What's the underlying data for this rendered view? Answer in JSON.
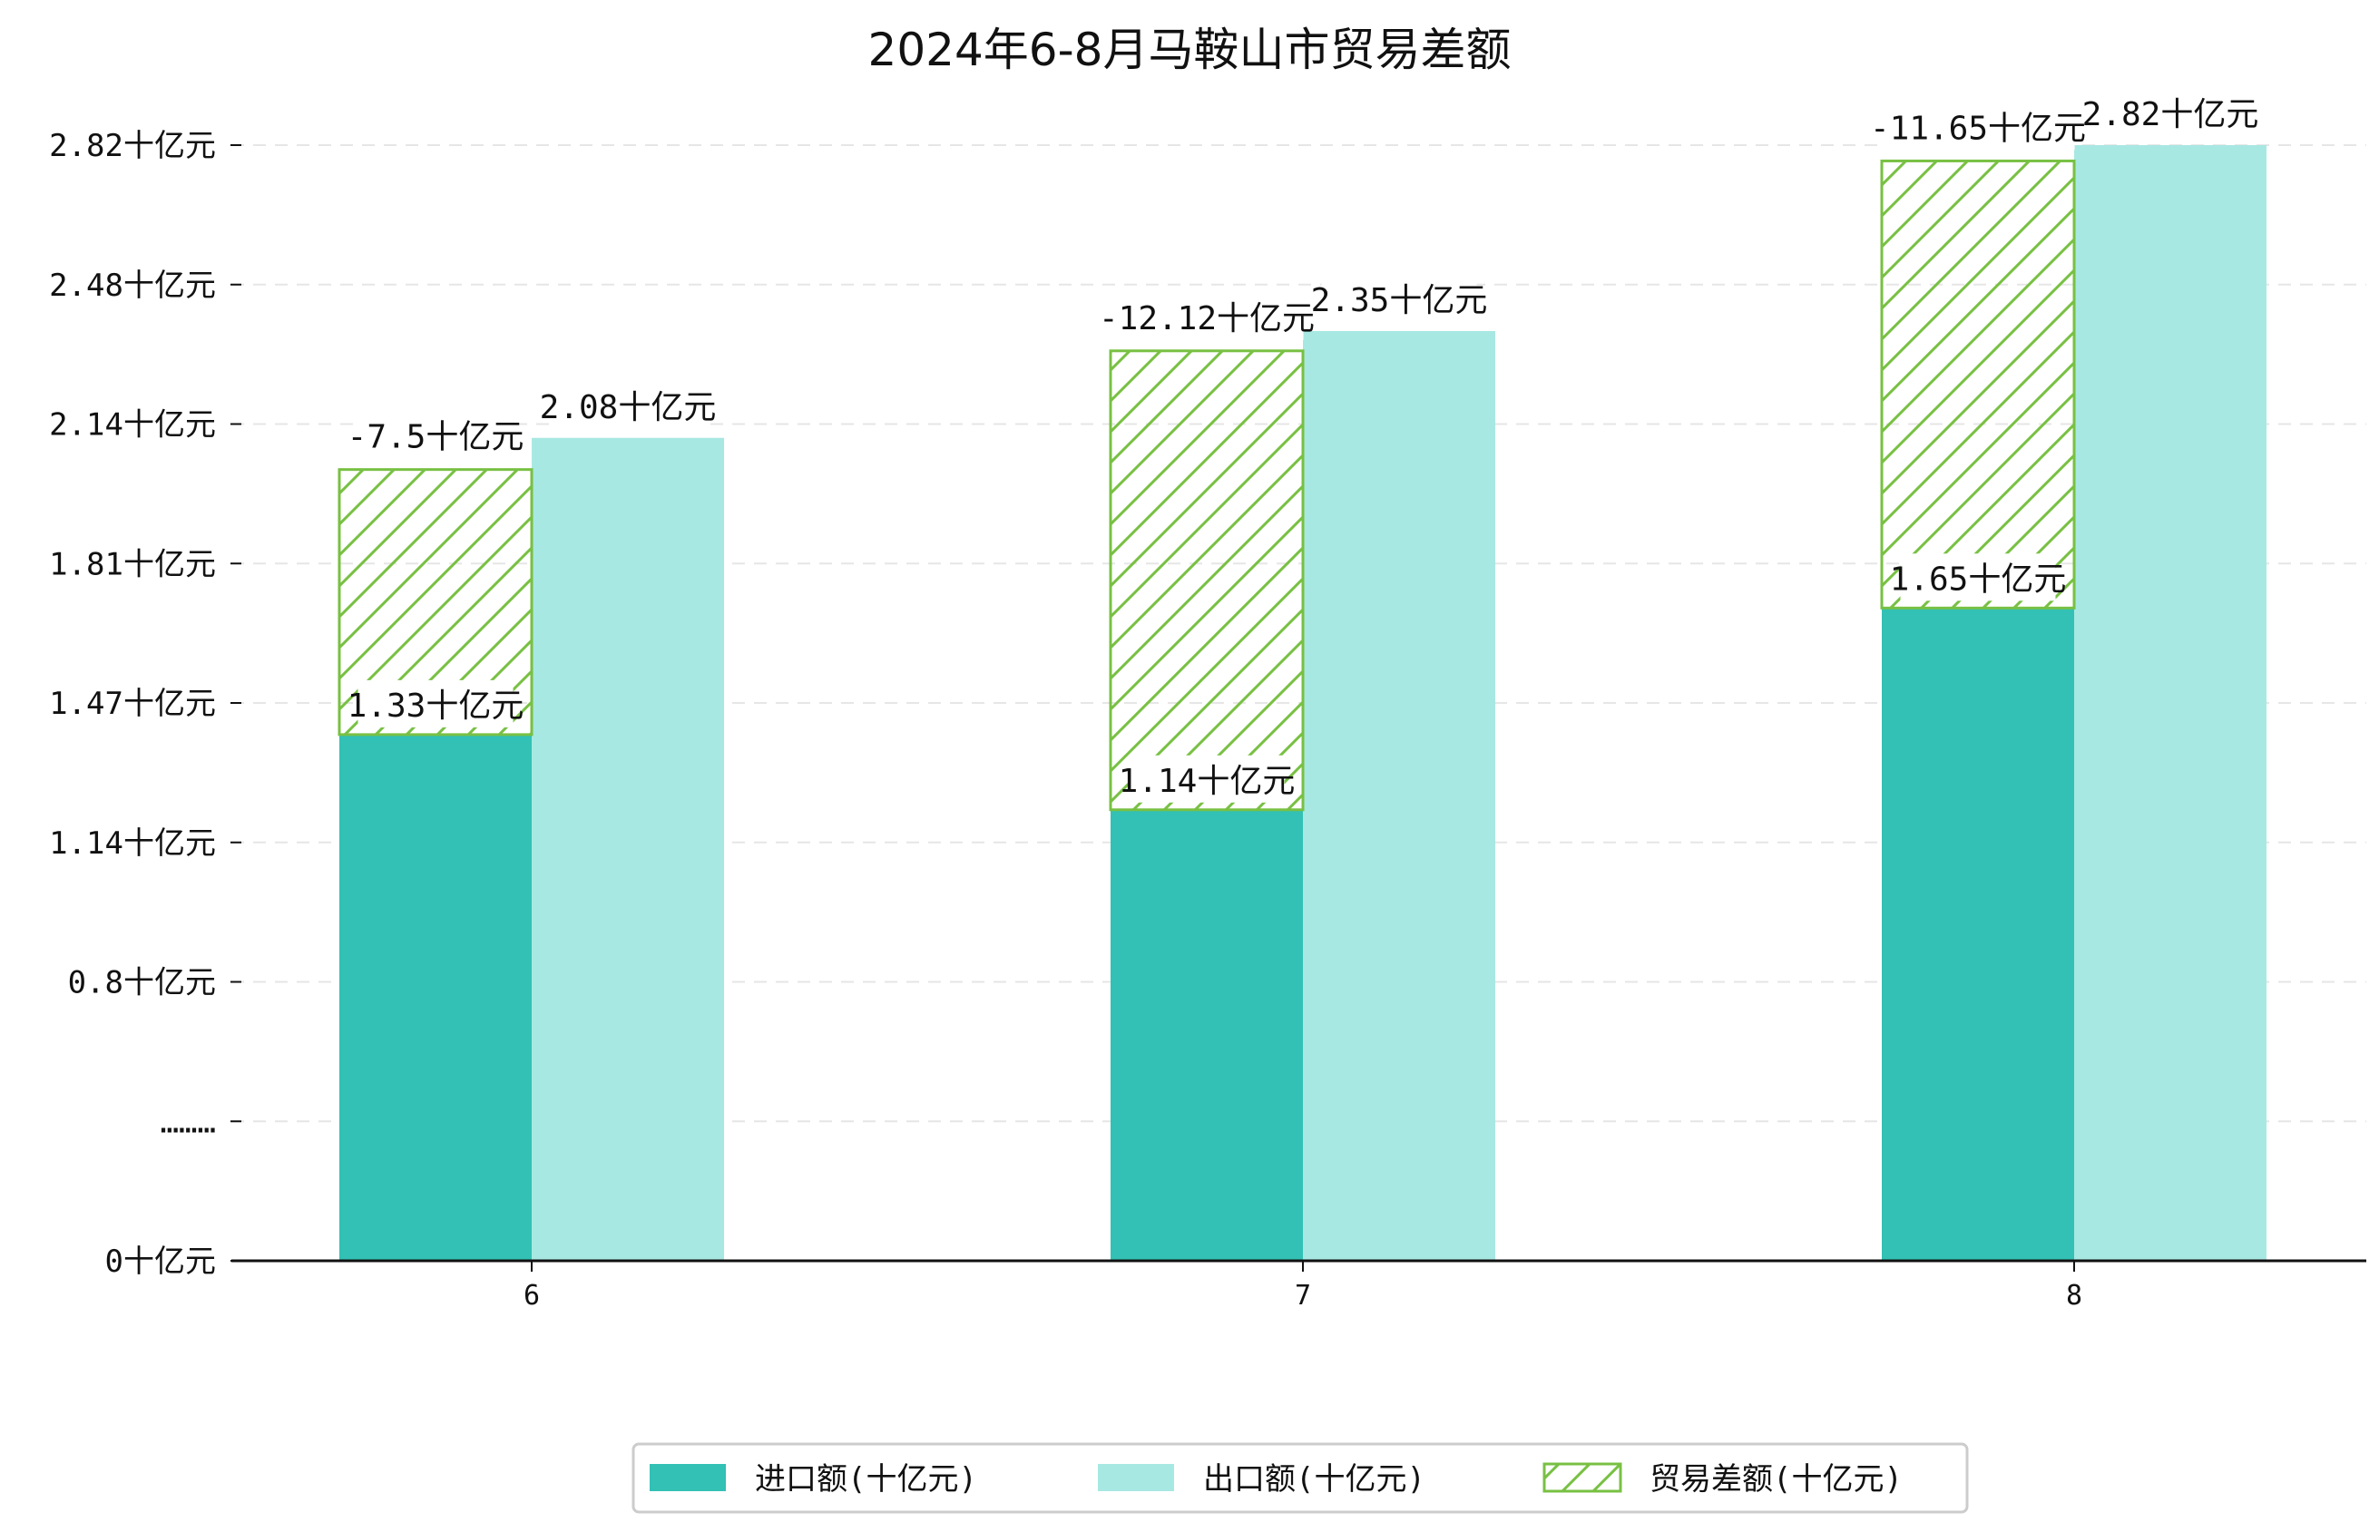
{
  "chart_data": {
    "type": "bar",
    "title": "2024年6-8月马鞍山市贸易差额",
    "categories": [
      "6",
      "7",
      "8"
    ],
    "y_ticks": [
      "0十亿元",
      "………",
      "0.8十亿元",
      "1.14十亿元",
      "1.47十亿元",
      "1.81十亿元",
      "2.14十亿元",
      "2.48十亿元",
      "2.82十亿元"
    ],
    "ylim": [
      0,
      2.82
    ],
    "grid": "horizontal dashed",
    "legend_position": "bottom",
    "series": [
      {
        "name": "进口额(十亿元)",
        "color": "#32c1b4",
        "values": [
          1.33,
          1.14,
          1.65
        ],
        "labels": [
          "1.33十亿元",
          "1.14十亿元",
          "1.65十亿元"
        ]
      },
      {
        "name": "出口额(十亿元)",
        "color": "#a8e8e2",
        "values": [
          2.08,
          2.35,
          2.82
        ],
        "labels": [
          "2.08十亿元",
          "2.35十亿元",
          "2.82十亿元"
        ]
      },
      {
        "name": "贸易差额(十亿元)",
        "color": "#78c043",
        "pattern": "hatch",
        "values": [
          -7.5,
          -12.12,
          -11.65
        ],
        "labels": [
          "-7.5十亿元",
          "-12.12十亿元",
          "-11.65十亿元"
        ],
        "drawn_from": [
          1.33,
          1.14,
          1.65
        ],
        "drawn_to": [
          2.0,
          2.3,
          2.78
        ]
      }
    ]
  }
}
